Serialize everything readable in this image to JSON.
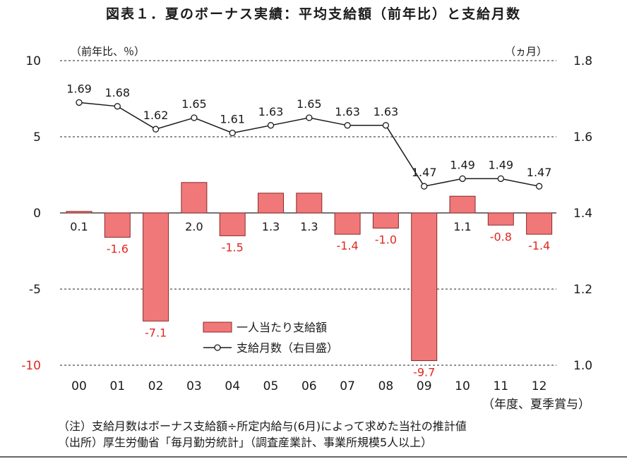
{
  "chart_data": {
    "type": "bar+line",
    "title": "図表１．夏のボーナス実績：平均支給額（前年比）と支給月数",
    "left_axis_unit": "（前年比、％）",
    "right_axis_unit": "（ヵ月）",
    "x_axis_note": "（年度、夏季賞与）",
    "categories": [
      "00",
      "01",
      "02",
      "03",
      "04",
      "05",
      "06",
      "07",
      "08",
      "09",
      "10",
      "11",
      "12"
    ],
    "left_axis": {
      "min": -10,
      "max": 10,
      "ticks": [
        10,
        5,
        0,
        -5,
        -10
      ]
    },
    "right_axis": {
      "min": 1.0,
      "max": 1.8,
      "ticks": [
        "1.8",
        "1.6",
        "1.4",
        "1.2",
        "1.0"
      ]
    },
    "series": [
      {
        "name": "一人当たり支給額",
        "type": "bar",
        "axis": "left",
        "values": [
          0.1,
          -1.6,
          -7.1,
          2.0,
          -1.5,
          1.3,
          1.3,
          -1.4,
          -1.0,
          -9.7,
          1.1,
          -0.8,
          -1.4
        ],
        "labels": [
          "0.1",
          "-1.6",
          "-7.1",
          "2.0",
          "-1.5",
          "1.3",
          "1.3",
          "-1.4",
          "-1.0",
          "-9.7",
          "1.1",
          "-0.8",
          "-1.4"
        ]
      },
      {
        "name": "支給月数（右目盛）",
        "type": "line",
        "axis": "right",
        "values": [
          1.69,
          1.68,
          1.62,
          1.65,
          1.61,
          1.63,
          1.65,
          1.63,
          1.63,
          1.47,
          1.49,
          1.49,
          1.47
        ],
        "labels": [
          "1.69",
          "1.68",
          "1.62",
          "1.65",
          "1.61",
          "1.63",
          "1.65",
          "1.63",
          "1.63",
          "1.47",
          "1.49",
          "1.49",
          "1.47"
        ]
      }
    ],
    "grid": "dashed-horizontal",
    "legend_position": "bottom-center"
  },
  "notes": {
    "note1": "（注）支給月数はボーナス支給額÷所定内給与(6月)によって求めた当社の推計値",
    "source": "（出所）厚生労働省「毎月勤労統計」（調査産業計、事業所規模5人以上）"
  },
  "colors": {
    "bar_fill": "#f07878",
    "bar_stroke": "#8a2a2a",
    "negative_label": "#e0271f",
    "line": "#1a1a1a"
  }
}
